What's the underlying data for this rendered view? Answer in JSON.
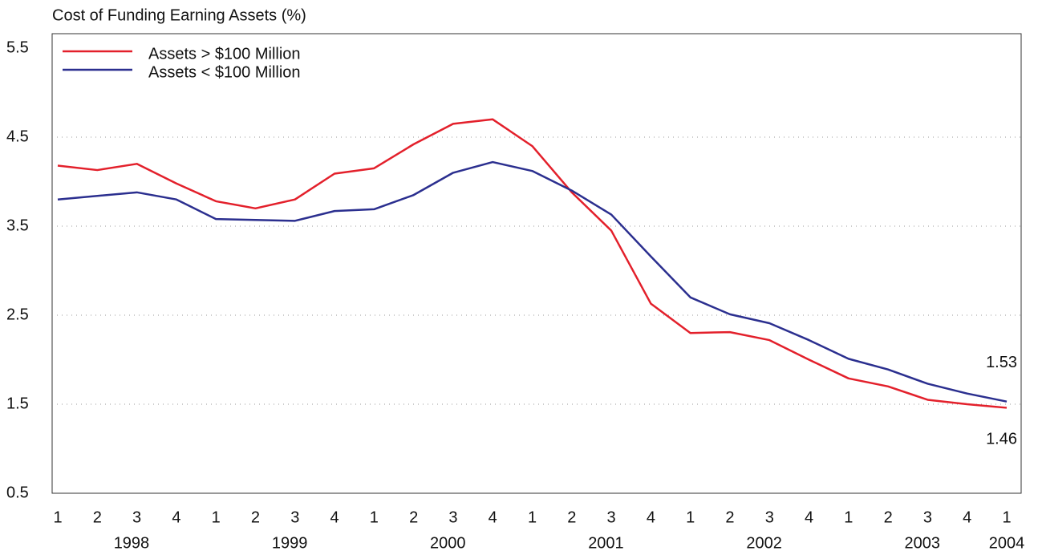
{
  "chart_data": {
    "type": "line",
    "title": "Cost of Funding Earning Assets (%)",
    "categories": [
      "1",
      "2",
      "3",
      "4",
      "1",
      "2",
      "3",
      "4",
      "1",
      "2",
      "3",
      "4",
      "1",
      "2",
      "3",
      "4",
      "1",
      "2",
      "3",
      "4",
      "1",
      "2",
      "3",
      "4",
      "1"
    ],
    "years": [
      "1998",
      "1999",
      "2000",
      "2001",
      "2002",
      "2003",
      "2004"
    ],
    "series": [
      {
        "name": "Assets > $100 Million",
        "color": "#e3202b",
        "values": [
          4.18,
          4.13,
          4.2,
          3.98,
          3.78,
          3.7,
          3.8,
          4.09,
          4.15,
          4.42,
          4.65,
          4.7,
          4.4,
          3.88,
          3.45,
          2.63,
          2.3,
          2.31,
          2.22,
          2.0,
          1.79,
          1.7,
          1.55,
          1.5,
          1.46
        ]
      },
      {
        "name": "Assets < $100 Million",
        "color": "#2b2f8f",
        "values": [
          3.8,
          3.84,
          3.88,
          3.8,
          3.58,
          3.57,
          3.56,
          3.67,
          3.69,
          3.85,
          4.1,
          4.22,
          4.12,
          3.9,
          3.63,
          3.16,
          2.7,
          2.51,
          2.41,
          2.22,
          2.01,
          1.89,
          1.73,
          1.62,
          1.53
        ]
      }
    ],
    "ylim": [
      0.5,
      5.5
    ],
    "yticks": [
      0.5,
      1.5,
      2.5,
      3.5,
      4.5,
      5.5
    ],
    "grid": true,
    "legend": "top-left"
  }
}
